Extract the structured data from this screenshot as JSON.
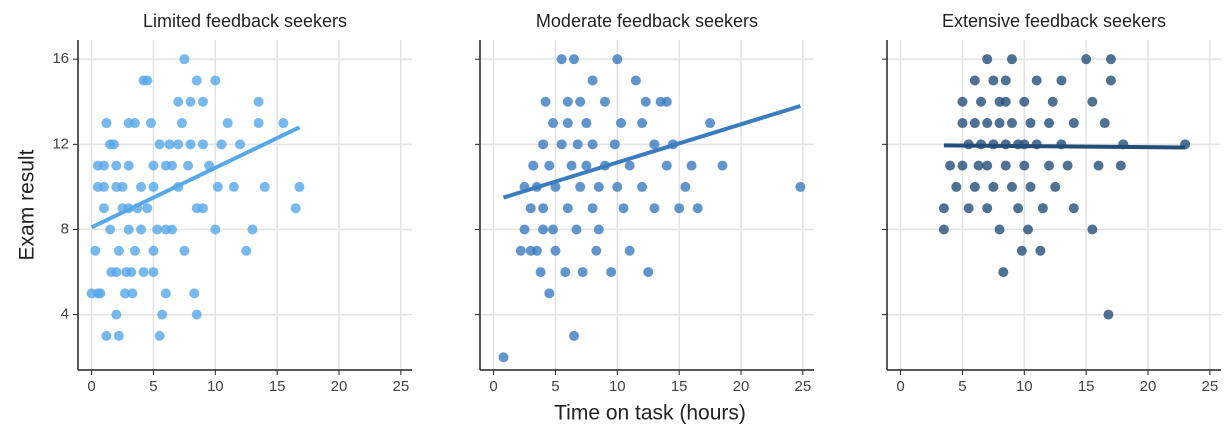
{
  "chart_data": {
    "type": "scatter",
    "ylabel": "Exam result",
    "xlabel": "Time on task (hours)",
    "xlim": [
      -1.1,
      25.9
    ],
    "ylim": [
      1.4,
      16.9
    ],
    "xticks": [
      0,
      5,
      10,
      15,
      20,
      25
    ],
    "yticks": [
      4,
      8,
      12,
      16
    ],
    "grid": true,
    "facets": [
      {
        "title": "Limited feedback seekers",
        "color": "#56a8e8",
        "x": [
          0,
          0.5,
          0.7,
          0.3,
          0.5,
          1,
          0.5,
          1,
          1,
          1.2,
          1.5,
          1.5,
          1.2,
          1.8,
          1.6,
          2,
          2,
          2,
          2,
          2.2,
          2.2,
          2.5,
          2.5,
          2.7,
          2.8,
          3,
          3,
          3,
          3,
          3.2,
          3.3,
          3.5,
          3.5,
          3.7,
          4,
          4,
          4.2,
          4.5,
          4.2,
          4.5,
          4.8,
          5,
          5,
          5,
          5,
          5.3,
          5.5,
          5.5,
          5.7,
          6,
          6,
          6,
          6.3,
          6.5,
          6.5,
          7,
          7,
          7,
          7.3,
          7.5,
          7.5,
          7.8,
          8,
          8,
          8.3,
          8.5,
          8.5,
          8.5,
          9,
          9,
          9,
          9.5,
          10,
          10,
          10.2,
          10.5,
          11,
          11.5,
          12,
          12.5,
          13,
          13.5,
          13.5,
          14,
          15.5,
          16.5,
          16.8
        ],
        "y": [
          5,
          5,
          5,
          7,
          10,
          10,
          11,
          11,
          9,
          3,
          8,
          12,
          13,
          12,
          6,
          6,
          4,
          10,
          11,
          7,
          3,
          9,
          10,
          5,
          6,
          8,
          9,
          11,
          13,
          6,
          5,
          13,
          7,
          9,
          8,
          10,
          15,
          15,
          6,
          9,
          13,
          6,
          7,
          11,
          10,
          8,
          3,
          12,
          4,
          5,
          8,
          11,
          12,
          8,
          11,
          10,
          12,
          14,
          13,
          7,
          16,
          11,
          12,
          14,
          5,
          4,
          15,
          9,
          14,
          12,
          9,
          11,
          15,
          8,
          10,
          12,
          13,
          10,
          12,
          7,
          8,
          14,
          13,
          10,
          13,
          9,
          10
        ],
        "trend": {
          "x": [
            0,
            16.8
          ],
          "y": [
            8.1,
            12.8
          ]
        }
      },
      {
        "title": "Moderate feedback seekers",
        "color": "#3b7bbf",
        "x": [
          0.8,
          2.2,
          2.5,
          2.5,
          3,
          3,
          3.2,
          3.5,
          3.5,
          3.8,
          4,
          4,
          4,
          4.2,
          4.5,
          4.5,
          4.8,
          4.8,
          5,
          5,
          5.5,
          5.5,
          5.8,
          6,
          6,
          6,
          6.3,
          6.5,
          6.5,
          6.7,
          6.8,
          7,
          7,
          7.2,
          7.5,
          7.5,
          8,
          8,
          8,
          8.3,
          8.5,
          8.5,
          9,
          9,
          9.5,
          9.8,
          10,
          10,
          10.3,
          10.5,
          11,
          11,
          11.5,
          12,
          12,
          12.5,
          13,
          13,
          13.5,
          14,
          14.5,
          15,
          15.5,
          16,
          16.5,
          17.5,
          18.5,
          24.8,
          12.3,
          14
        ],
        "y": [
          2,
          7,
          10,
          8,
          9,
          7,
          11,
          10,
          7,
          6,
          12,
          9,
          8,
          14,
          11,
          5,
          13,
          8,
          10,
          7,
          16,
          12,
          6,
          13,
          9,
          14,
          11,
          16,
          3,
          8,
          12,
          14,
          10,
          6,
          11,
          13,
          9,
          15,
          12,
          7,
          10,
          8,
          11,
          14,
          6,
          12,
          16,
          10,
          13,
          9,
          7,
          11,
          15,
          13,
          10,
          6,
          12,
          9,
          14,
          11,
          12,
          9,
          10,
          11,
          9,
          13,
          11,
          10,
          14,
          14
        ],
        "trend": {
          "x": [
            0.8,
            24.8
          ],
          "y": [
            9.5,
            13.8
          ]
        }
      },
      {
        "title": "Extensive feedback seekers",
        "color": "#234e78",
        "x": [
          3.5,
          3.5,
          4,
          4.5,
          5,
          5,
          5,
          5.5,
          5.5,
          6,
          6,
          6,
          6.3,
          6.5,
          6.5,
          7,
          7,
          7,
          7,
          7.5,
          7.5,
          7.5,
          8,
          8,
          8,
          8.3,
          8.5,
          8.5,
          8.5,
          9,
          9,
          9,
          9.5,
          9.5,
          9.8,
          10,
          10,
          10.3,
          10.5,
          10.5,
          11,
          11,
          11.3,
          11.5,
          12,
          12,
          12.3,
          12.5,
          13,
          13,
          13.5,
          14,
          14,
          15,
          15.5,
          15.5,
          16,
          16.5,
          17,
          17,
          16.8,
          17.8,
          18,
          23,
          8.5,
          10
        ],
        "y": [
          9,
          8,
          11,
          10,
          13,
          14,
          11,
          12,
          9,
          13,
          15,
          10,
          11,
          12,
          14,
          13,
          11,
          9,
          16,
          15,
          10,
          12,
          13,
          8,
          14,
          6,
          11,
          12,
          15,
          10,
          13,
          16,
          9,
          12,
          7,
          11,
          14,
          8,
          13,
          10,
          12,
          15,
          7,
          9,
          13,
          11,
          14,
          10,
          12,
          15,
          11,
          13,
          9,
          16,
          14,
          8,
          11,
          13,
          16,
          15,
          4,
          11,
          12,
          12,
          14,
          12
        ],
        "trend": {
          "x": [
            3.5,
            23
          ],
          "y": [
            11.95,
            11.85
          ]
        }
      }
    ]
  }
}
